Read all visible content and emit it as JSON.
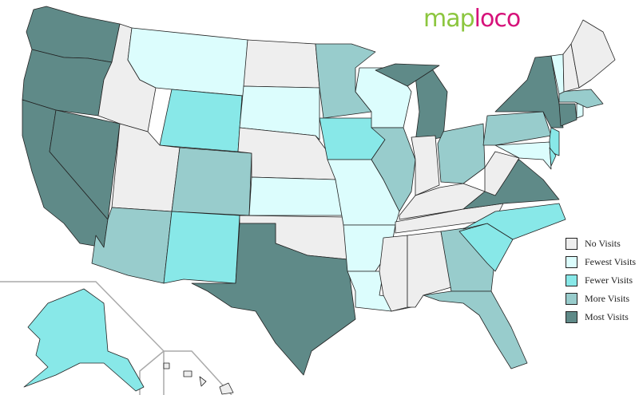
{
  "logo": {
    "part1": "map",
    "part2": "loco"
  },
  "legend": [
    {
      "label": "No Visits",
      "color": "#eeeeee",
      "key": "none"
    },
    {
      "label": "Fewest Visits",
      "color": "#dcfdfd",
      "key": "fewest"
    },
    {
      "label": "Fewer Visits",
      "color": "#88e8e8",
      "key": "fewer"
    },
    {
      "label": "More Visits",
      "color": "#98cccc",
      "key": "more"
    },
    {
      "label": "Most Visits",
      "color": "#5f8a88",
      "key": "most"
    }
  ],
  "states": {
    "WA": "most",
    "OR": "most",
    "CA": "most",
    "NV": "most",
    "ID": "none",
    "MT": "fewest",
    "WY": "fewer",
    "UT": "none",
    "CO": "more",
    "AZ": "more",
    "NM": "fewer",
    "ND": "none",
    "SD": "fewest",
    "NE": "none",
    "KS": "fewest",
    "OK": "none",
    "TX": "most",
    "MN": "more",
    "IA": "fewer",
    "MO": "fewest",
    "AR": "fewest",
    "LA": "fewest",
    "WI": "fewest",
    "IL": "more",
    "MI": "most",
    "IN": "none",
    "OH": "more",
    "KY": "none",
    "TN": "none",
    "MS": "none",
    "AL": "none",
    "GA": "more",
    "FL": "more",
    "SC": "fewer",
    "NC": "fewer",
    "VA": "most",
    "WV": "none",
    "PA": "more",
    "NY": "most",
    "NJ": "fewer",
    "DE": "fewer",
    "MD": "fewest",
    "CT": "most",
    "RI": "fewest",
    "MA": "more",
    "VT": "fewest",
    "NH": "none",
    "ME": "none",
    "AK": "fewer",
    "HI": "none"
  }
}
